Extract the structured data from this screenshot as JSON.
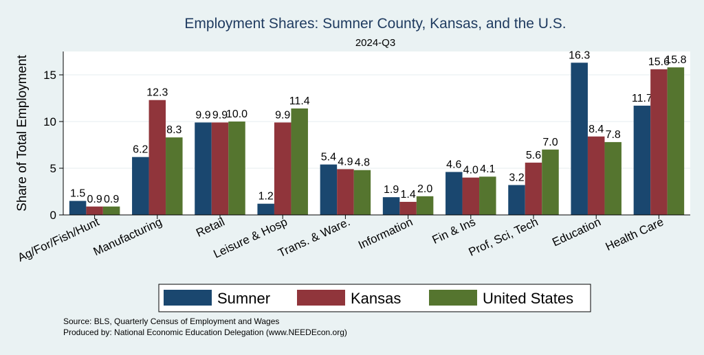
{
  "chart_data": {
    "type": "bar",
    "title": "Employment Shares: Sumner County, Kansas, and the U.S.",
    "subtitle": "2024-Q3",
    "xlabel": "",
    "ylabel": "Share of Total Employment",
    "ylim": [
      0,
      17.5
    ],
    "yticks": [
      0,
      5,
      10,
      15
    ],
    "grid": true,
    "legend_position": "bottom",
    "categories": [
      "Ag/For/Fish/Hunt",
      "Manufacturing",
      "Retail",
      "Leisure & Hosp",
      "Trans. & Ware.",
      "Information",
      "Fin & Ins",
      "Prof, Sci, Tech",
      "Education",
      "Health Care"
    ],
    "series": [
      {
        "name": "Sumner",
        "color": "#1a476f",
        "values": [
          1.5,
          6.2,
          9.9,
          1.2,
          5.4,
          1.9,
          4.6,
          3.2,
          16.3,
          11.7
        ],
        "labels": [
          "1.5",
          "6.2",
          "9.9",
          "1.2",
          "5.4",
          "1.9",
          "4.6",
          "3.2",
          "16.3",
          "11.7"
        ]
      },
      {
        "name": "Kansas",
        "color": "#90353b",
        "values": [
          0.9,
          12.3,
          9.9,
          9.9,
          4.9,
          1.4,
          4.0,
          5.6,
          8.4,
          15.6
        ],
        "labels": [
          "0.9",
          "12.3",
          "9.9",
          "9.9",
          "4.9",
          "1.4",
          "4.0",
          "5.6",
          "8.4",
          "15.6"
        ]
      },
      {
        "name": "United States",
        "color": "#55752f",
        "values": [
          0.9,
          8.3,
          10.0,
          11.4,
          4.8,
          2.0,
          4.1,
          7.0,
          7.8,
          15.8
        ],
        "labels": [
          "0.9",
          "8.3",
          "10.0",
          "11.4",
          "4.8",
          "2.0",
          "4.1",
          "7.0",
          "7.8",
          "15.8"
        ]
      }
    ]
  },
  "notes": {
    "source": "Source: BLS, Quarterly Census of Employment and Wages",
    "produced_by": "Produced by: National Economic Education Delegation (www.NEEDEcon.org)"
  }
}
